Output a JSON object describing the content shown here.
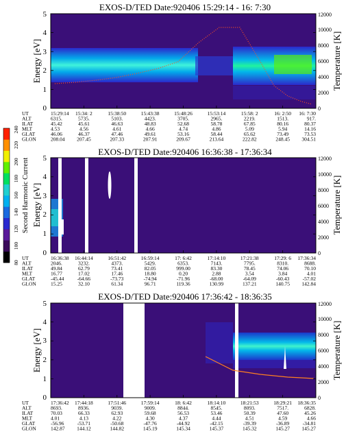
{
  "colorbar": {
    "label": "Second Harmonic Current",
    "ticks": [
      "80",
      "100",
      "120",
      "140",
      "160",
      "180",
      "200",
      "220",
      "240"
    ],
    "colors": [
      "#000000",
      "#3a0a5a",
      "#5a1a9a",
      "#2a2ad0",
      "#1a6ae0",
      "#00b0f0",
      "#20d0d0",
      "#00e060",
      "#60f000",
      "#f0f000",
      "#ff9000",
      "#ff2000"
    ]
  },
  "panels": [
    {
      "title": "EXOS-D/TED   Date:920406  15:29:14 - 16: 7:30",
      "ylabel_left": "Energy [eV]",
      "ylabel_right": "Temperature [K]",
      "left_ticks": [
        "0",
        "1",
        "2",
        "3",
        "4",
        "5"
      ],
      "right_ticks": [
        "0",
        "2000",
        "4000",
        "6000",
        "8000",
        "10000",
        "12000"
      ],
      "row_labels": [
        "UT",
        "ALT",
        "ILAT",
        "MLT",
        "GLAT",
        "GLON"
      ],
      "columns": [
        [
          "15:29:14",
          "6315.",
          "45.42",
          "4.53",
          "46.06",
          "208.04"
        ],
        [
          "15:34: 2",
          "5735.",
          "45.61",
          "4.56",
          "46.37",
          "207.45"
        ],
        [
          "15:38:50",
          "5103.",
          "46.63",
          "4.61",
          "47.46",
          "207.33"
        ],
        [
          "15:43:38",
          "4423.",
          "48.83",
          "4.66",
          "49.61",
          "207.91"
        ],
        [
          "15:48:26",
          "3705.",
          "52.68",
          "4.74",
          "53.16",
          "209.67"
        ],
        [
          "15:53:14",
          "2965.",
          "58.78",
          "4.86",
          "58.44",
          "213.64"
        ],
        [
          "15:58: 2",
          "2219.",
          "67.85",
          "5.09",
          "65.62",
          "222.82"
        ],
        [
          "16: 2:50",
          "1513.",
          "80.16",
          "5.94",
          "73.49",
          "248.45"
        ],
        [
          "16: 7:30",
          "917.",
          "80.37",
          "14.16",
          "73.53",
          "304.51"
        ]
      ]
    },
    {
      "title": "EXOS-D/TED   Date:920406  16:36:38 - 17:36:34",
      "ylabel_left": "Energy [eV]",
      "ylabel_right": "Temperature [K]",
      "left_ticks": [
        "0",
        "1",
        "2",
        "3",
        "4",
        "5"
      ],
      "right_ticks": [
        "0",
        "2000",
        "4000",
        "6000",
        "8000",
        "10000",
        "12000"
      ],
      "row_labels": [
        "UT",
        "ALT",
        "ILAT",
        "MLT",
        "GLAT",
        "GLON"
      ],
      "columns": [
        [
          "16:36:38",
          "2046.",
          "49.84",
          "16.77",
          "-45.44",
          "15.25"
        ],
        [
          "16:44:14",
          "3232.",
          "62.79",
          "17.02",
          "-64.66",
          "32.10"
        ],
        [
          "16:51:42",
          "4373.",
          "73.41",
          "17.46",
          "-73.73",
          "61.34"
        ],
        [
          "16:59:14",
          "5429.",
          "82.05",
          "18.80",
          "-74.94",
          "96.71"
        ],
        [
          "17: 6:42",
          "6353.",
          "999.00",
          "0.20",
          "-71.96",
          "119.36"
        ],
        [
          "17:14:10",
          "7143.",
          "83.30",
          "2.88",
          "-68.00",
          "130.99"
        ],
        [
          "17:21:38",
          "7795.",
          "78.45",
          "3.54",
          "-64.09",
          "137.21"
        ],
        [
          "17:29: 6",
          "8310.",
          "74.06",
          "3.84",
          "-60.43",
          "140.75"
        ],
        [
          "17:36:34",
          "8688.",
          "70.10",
          "4.01",
          "-57.02",
          "142.84"
        ]
      ]
    },
    {
      "title": "EXOS-D/TED   Date:920406  17:36:42 - 18:36:35",
      "ylabel_left": "Energy [eV]",
      "ylabel_right": "Temperature [K]",
      "left_ticks": [
        "0",
        "1",
        "2",
        "3",
        "4",
        "5"
      ],
      "right_ticks": [
        "0",
        "2000",
        "4000",
        "6000",
        "8000",
        "10000",
        "12000"
      ],
      "row_labels": [
        "UT",
        "ALT",
        "ILAT",
        "MLT",
        "GLAT",
        "GLON"
      ],
      "columns": [
        [
          "17:36:42",
          "8693.",
          "70.03",
          "4.01",
          "-56.96",
          "142.87"
        ],
        [
          "17:44:18",
          "8936.",
          "66.33",
          "4.13",
          "-53.71",
          "144.12"
        ],
        [
          "17:51:46",
          "9039.",
          "62.93",
          "4.22",
          "-50.68",
          "144.82"
        ],
        [
          "17:59:14",
          "9009.",
          "59.68",
          "4.30",
          "-47.76",
          "145.19"
        ],
        [
          "18: 6:42",
          "8844.",
          "56.53",
          "4.37",
          "-44.92",
          "145.34"
        ],
        [
          "18:14:10",
          "8545.",
          "53.46",
          "4.44",
          "-42.15",
          "145.37"
        ],
        [
          "18:21:53",
          "8093.",
          "50.39",
          "4.51",
          "-39.39",
          "145.32"
        ],
        [
          "18:29:21",
          "7517.",
          "47.60",
          "4.59",
          "-36.89",
          "145.27"
        ],
        [
          "18:36:35",
          "6828.",
          "45.26",
          "4.66",
          "-34.81",
          "145.27"
        ]
      ]
    }
  ],
  "chart_data": [
    {
      "type": "heatmap",
      "title": "EXOS-D/TED   Date:920406  15:29:14 - 16: 7:30",
      "ylabel": "Energy [eV]",
      "y2label": "Temperature [K]",
      "ylim": [
        0,
        5
      ],
      "y2lim": [
        0,
        12000
      ],
      "bands": [
        {
          "x0": 0.0,
          "x1": 0.55,
          "y0": 1.7,
          "y1": 3.1,
          "level": "high"
        },
        {
          "x0": 0.55,
          "x1": 0.65,
          "y0": 2.0,
          "y1": 2.8,
          "level": "low"
        },
        {
          "x0": 0.65,
          "x1": 1.0,
          "y0": 1.6,
          "y1": 3.2,
          "level": "high"
        }
      ],
      "temperature_trace": {
        "x": [
          0.0,
          0.1,
          0.2,
          0.3,
          0.4,
          0.5,
          0.6,
          0.7,
          0.8,
          0.9,
          1.0
        ],
        "y": [
          3200,
          3400,
          3700,
          4100,
          4800,
          6000,
          8500,
          9000,
          5000,
          3000,
          2500
        ]
      }
    },
    {
      "type": "heatmap",
      "title": "EXOS-D/TED   Date:920406  16:36:38 - 17:36:34",
      "ylabel": "Energy [eV]",
      "y2label": "Temperature [K]",
      "ylim": [
        0,
        5
      ],
      "y2lim": [
        0,
        12000
      ],
      "bands": [
        {
          "x0": 0.0,
          "x1": 0.12,
          "y0": 1.4,
          "y1": 2.8,
          "level": "mid"
        }
      ],
      "gaps_x": [
        0.04,
        0.19,
        0.39
      ],
      "temperature_trace": {
        "x": [],
        "y": []
      }
    },
    {
      "type": "heatmap",
      "title": "EXOS-D/TED   Date:920406  17:36:42 - 18:36:35",
      "ylabel": "Energy [eV]",
      "y2label": "Temperature [K]",
      "ylim": [
        0,
        5
      ],
      "y2lim": [
        0,
        12000
      ],
      "bands": [
        {
          "x0": 0.66,
          "x1": 1.0,
          "y0": 2.6,
          "y1": 3.4,
          "level": "high"
        }
      ],
      "gaps_x": [
        0.4,
        0.73
      ],
      "temperature_trace": {
        "x": [
          0.6,
          0.65,
          0.7,
          0.75,
          0.8,
          0.85,
          0.9,
          0.95,
          1.0
        ],
        "y": [
          5600,
          5200,
          4600,
          4000,
          3500,
          3000,
          2700,
          2500,
          2400
        ]
      }
    }
  ]
}
